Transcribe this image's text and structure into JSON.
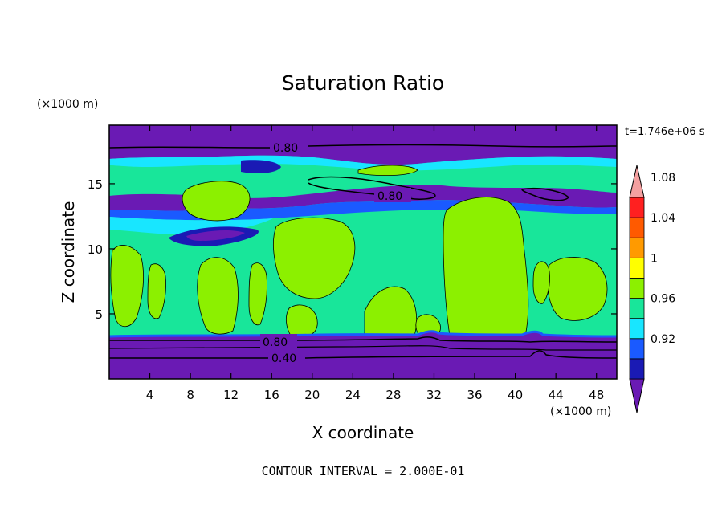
{
  "chart_data": {
    "type": "heatmap",
    "title": "Saturation Ratio",
    "xlabel": "X coordinate",
    "ylabel": "Z coordinate",
    "x_unit": "(×1000 m)",
    "z_unit": "(×1000 m)",
    "xlim": [
      0,
      50
    ],
    "zlim": [
      0,
      19.5
    ],
    "x_ticks": [
      "4",
      "8",
      "12",
      "16",
      "20",
      "24",
      "28",
      "32",
      "36",
      "40",
      "44",
      "48"
    ],
    "z_ticks": [
      "5",
      "10",
      "15"
    ],
    "time_label": "t=1.746e+06 s",
    "footer": "CONTOUR INTERVAL = 2.000E-01",
    "contour_labels": [
      "0.80",
      "0.80",
      "0.80",
      "0.40"
    ],
    "colorbar": {
      "labels": [
        "0.92",
        "0.96",
        "1",
        "1.04",
        "1.08"
      ],
      "colors": [
        "#6a1ab4",
        "#1a1ab4",
        "#1a5aff",
        "#18e6ff",
        "#18e69a",
        "#8cf000",
        "#ffff00",
        "#ff9a00",
        "#ff5a00",
        "#ff2020",
        "#f4a0a0"
      ]
    }
  }
}
